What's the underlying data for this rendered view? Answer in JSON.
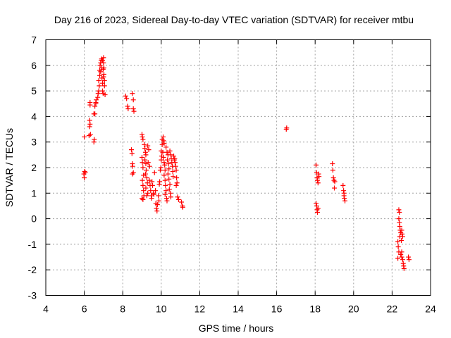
{
  "chart_data": {
    "type": "scatter",
    "title": "Day 216 of 2023, Sidereal Day-to-day VTEC variation (SDTVAR) for receiver mtbu",
    "xlabel": "GPS time / hours",
    "ylabel": "SDTVAR / TECUs",
    "xlim": [
      4,
      24
    ],
    "ylim": [
      -3,
      7
    ],
    "xticks": [
      4,
      6,
      8,
      10,
      12,
      14,
      16,
      18,
      20,
      22,
      24
    ],
    "yticks": [
      -3,
      -2,
      -1,
      0,
      1,
      2,
      3,
      4,
      5,
      6,
      7
    ],
    "grid": true,
    "marker": "+",
    "color": "#ff0000",
    "series": [
      {
        "name": "SDTVAR",
        "points": [
          [
            5.98,
            1.75
          ],
          [
            6.0,
            1.6
          ],
          [
            6.02,
            1.85
          ],
          [
            6.05,
            1.8
          ],
          [
            6.0,
            3.2
          ],
          [
            6.25,
            3.25
          ],
          [
            6.28,
            3.6
          ],
          [
            6.3,
            3.7
          ],
          [
            6.28,
            3.85
          ],
          [
            6.3,
            4.45
          ],
          [
            6.3,
            4.55
          ],
          [
            6.32,
            3.3
          ],
          [
            6.5,
            3.0
          ],
          [
            6.52,
            3.1
          ],
          [
            6.5,
            4.1
          ],
          [
            6.55,
            4.1
          ],
          [
            6.55,
            4.4
          ],
          [
            6.6,
            4.5
          ],
          [
            6.6,
            4.55
          ],
          [
            6.62,
            4.65
          ],
          [
            6.7,
            4.75
          ],
          [
            6.72,
            4.9
          ],
          [
            6.75,
            5.0
          ],
          [
            6.78,
            5.2
          ],
          [
            6.75,
            5.4
          ],
          [
            6.8,
            5.6
          ],
          [
            6.8,
            5.8
          ],
          [
            6.82,
            6.0
          ],
          [
            6.85,
            6.1
          ],
          [
            6.88,
            6.2
          ],
          [
            6.9,
            6.25
          ],
          [
            6.9,
            5.9
          ],
          [
            6.92,
            5.5
          ],
          [
            6.95,
            5.3
          ],
          [
            6.95,
            5.0
          ],
          [
            6.98,
            4.9
          ],
          [
            7.0,
            6.3
          ],
          [
            7.0,
            6.1
          ],
          [
            7.02,
            5.9
          ],
          [
            7.02,
            5.65
          ],
          [
            7.05,
            5.4
          ],
          [
            7.05,
            5.2
          ],
          [
            7.08,
            4.85
          ],
          [
            6.95,
            6.2
          ],
          [
            6.85,
            5.75
          ],
          [
            6.98,
            5.85
          ],
          [
            7.0,
            5.55
          ],
          [
            8.15,
            4.8
          ],
          [
            8.2,
            4.7
          ],
          [
            8.25,
            4.4
          ],
          [
            8.28,
            4.3
          ],
          [
            8.5,
            4.9
          ],
          [
            8.55,
            4.65
          ],
          [
            8.55,
            4.3
          ],
          [
            8.58,
            4.2
          ],
          [
            8.45,
            2.7
          ],
          [
            8.48,
            2.55
          ],
          [
            8.5,
            2.15
          ],
          [
            8.52,
            2.05
          ],
          [
            8.55,
            1.8
          ],
          [
            8.5,
            1.75
          ],
          [
            9.0,
            3.3
          ],
          [
            9.02,
            3.2
          ],
          [
            9.05,
            3.1
          ],
          [
            9.0,
            2.4
          ],
          [
            9.02,
            2.2
          ],
          [
            9.05,
            2.0
          ],
          [
            9.08,
            1.7
          ],
          [
            9.02,
            1.5
          ],
          [
            9.05,
            1.3
          ],
          [
            9.08,
            1.1
          ],
          [
            9.1,
            0.9
          ],
          [
            9.0,
            0.8
          ],
          [
            9.05,
            0.75
          ],
          [
            9.12,
            2.9
          ],
          [
            9.15,
            2.75
          ],
          [
            9.18,
            2.6
          ],
          [
            9.2,
            2.5
          ],
          [
            9.15,
            2.3
          ],
          [
            9.2,
            2.15
          ],
          [
            9.22,
            1.9
          ],
          [
            9.18,
            1.75
          ],
          [
            9.25,
            1.6
          ],
          [
            9.28,
            1.4
          ],
          [
            9.2,
            1.2
          ],
          [
            9.3,
            1.0
          ],
          [
            9.25,
            0.9
          ],
          [
            9.3,
            2.85
          ],
          [
            9.35,
            2.7
          ],
          [
            9.32,
            2.2
          ],
          [
            9.4,
            2.05
          ],
          [
            9.38,
            1.5
          ],
          [
            9.42,
            1.3
          ],
          [
            9.45,
            1.1
          ],
          [
            9.48,
            0.9
          ],
          [
            9.5,
            0.8
          ],
          [
            9.52,
            1.45
          ],
          [
            9.55,
            1.3
          ],
          [
            9.6,
            1.0
          ],
          [
            9.62,
            0.95
          ],
          [
            9.65,
            1.8
          ],
          [
            9.7,
            1.1
          ],
          [
            9.72,
            0.6
          ],
          [
            9.75,
            0.4
          ],
          [
            9.78,
            0.3
          ],
          [
            9.8,
            0.55
          ],
          [
            9.85,
            0.9
          ],
          [
            9.88,
            0.7
          ],
          [
            9.9,
            1.35
          ],
          [
            9.92,
            1.45
          ],
          [
            9.95,
            1.9
          ],
          [
            9.98,
            2.0
          ],
          [
            10.0,
            2.3
          ],
          [
            10.02,
            2.45
          ],
          [
            10.0,
            2.65
          ],
          [
            10.05,
            2.9
          ],
          [
            10.05,
            3.1
          ],
          [
            10.1,
            3.2
          ],
          [
            10.12,
            3.05
          ],
          [
            10.15,
            2.95
          ],
          [
            10.08,
            2.6
          ],
          [
            10.12,
            2.4
          ],
          [
            10.15,
            2.2
          ],
          [
            10.18,
            2.1
          ],
          [
            10.2,
            1.9
          ],
          [
            10.15,
            1.7
          ],
          [
            10.2,
            1.5
          ],
          [
            10.22,
            1.3
          ],
          [
            10.25,
            1.1
          ],
          [
            10.2,
            0.95
          ],
          [
            10.28,
            0.8
          ],
          [
            10.3,
            0.7
          ],
          [
            10.25,
            2.8
          ],
          [
            10.3,
            2.6
          ],
          [
            10.35,
            2.5
          ],
          [
            10.32,
            2.3
          ],
          [
            10.38,
            2.15
          ],
          [
            10.4,
            1.95
          ],
          [
            10.35,
            1.75
          ],
          [
            10.4,
            1.55
          ],
          [
            10.45,
            1.35
          ],
          [
            10.42,
            1.15
          ],
          [
            10.48,
            1.0
          ],
          [
            10.5,
            0.85
          ],
          [
            10.45,
            2.65
          ],
          [
            10.5,
            2.5
          ],
          [
            10.52,
            2.35
          ],
          [
            10.55,
            2.2
          ],
          [
            10.58,
            2.05
          ],
          [
            10.6,
            1.85
          ],
          [
            10.62,
            1.65
          ],
          [
            10.65,
            2.45
          ],
          [
            10.68,
            2.3
          ],
          [
            10.7,
            2.35
          ],
          [
            10.72,
            2.2
          ],
          [
            10.75,
            2.05
          ],
          [
            10.78,
            1.9
          ],
          [
            10.8,
            1.6
          ],
          [
            10.82,
            1.4
          ],
          [
            10.78,
            1.3
          ],
          [
            10.85,
            0.85
          ],
          [
            10.9,
            0.75
          ],
          [
            11.05,
            0.65
          ],
          [
            11.1,
            0.5
          ],
          [
            11.12,
            0.45
          ],
          [
            16.5,
            3.5
          ],
          [
            16.52,
            3.55
          ],
          [
            18.05,
            0.6
          ],
          [
            18.08,
            0.5
          ],
          [
            18.1,
            0.35
          ],
          [
            18.12,
            0.25
          ],
          [
            18.15,
            0.4
          ],
          [
            18.05,
            2.1
          ],
          [
            18.08,
            1.8
          ],
          [
            18.1,
            1.6
          ],
          [
            18.12,
            1.5
          ],
          [
            18.15,
            1.4
          ],
          [
            18.18,
            1.75
          ],
          [
            18.2,
            1.65
          ],
          [
            18.9,
            2.15
          ],
          [
            18.92,
            1.9
          ],
          [
            18.95,
            1.6
          ],
          [
            18.98,
            1.5
          ],
          [
            19.0,
            1.2
          ],
          [
            19.02,
            1.45
          ],
          [
            19.45,
            1.3
          ],
          [
            19.48,
            1.1
          ],
          [
            19.5,
            1.0
          ],
          [
            19.52,
            0.8
          ],
          [
            19.55,
            0.7
          ],
          [
            19.5,
            0.9
          ],
          [
            22.3,
            -0.9
          ],
          [
            22.32,
            -1.1
          ],
          [
            22.35,
            -1.3
          ],
          [
            22.3,
            -1.55
          ],
          [
            22.35,
            0.35
          ],
          [
            22.38,
            0.25
          ],
          [
            22.35,
            0.0
          ],
          [
            22.38,
            -0.15
          ],
          [
            22.4,
            -0.3
          ],
          [
            22.42,
            -0.45
          ],
          [
            22.45,
            -0.55
          ],
          [
            22.4,
            -0.7
          ],
          [
            22.48,
            -0.85
          ],
          [
            22.5,
            -0.45
          ],
          [
            22.52,
            -0.6
          ],
          [
            22.55,
            -0.7
          ],
          [
            22.45,
            -1.4
          ],
          [
            22.5,
            -1.5
          ],
          [
            22.55,
            -1.6
          ],
          [
            22.58,
            -1.75
          ],
          [
            22.6,
            -1.85
          ],
          [
            22.62,
            -1.95
          ],
          [
            22.5,
            -1.3
          ],
          [
            22.85,
            -1.5
          ],
          [
            22.88,
            -1.6
          ]
        ]
      }
    ]
  }
}
